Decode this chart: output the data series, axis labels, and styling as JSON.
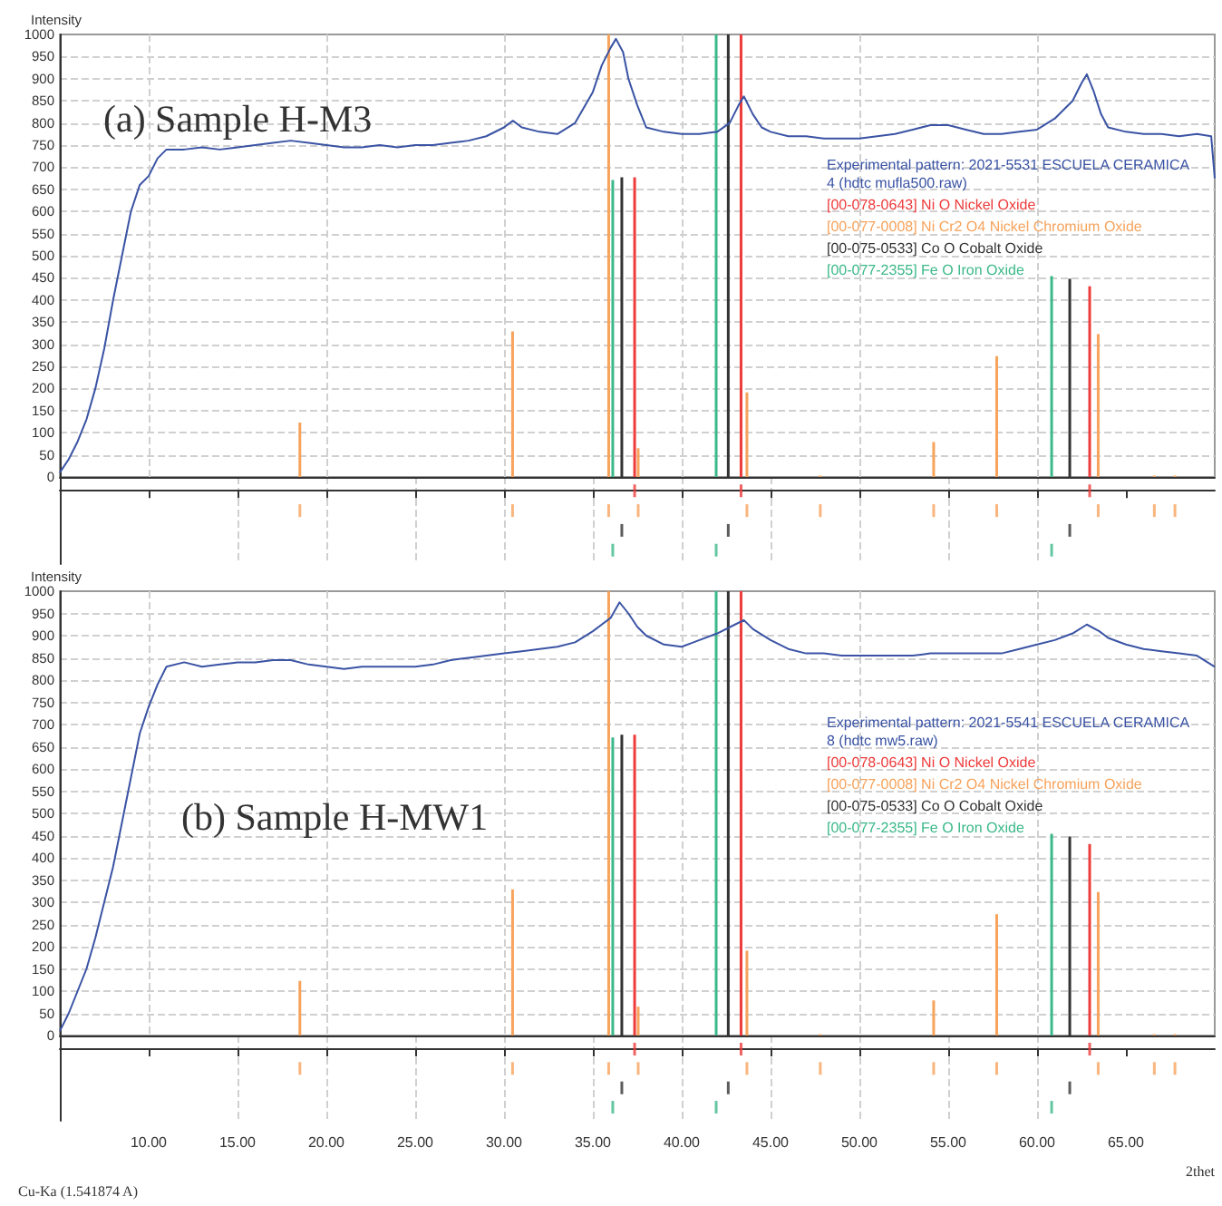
{
  "chart_data": [
    {
      "type": "line",
      "title": "(a) Sample H-M3",
      "ylabel": "Intensity",
      "xlim": [
        5,
        70
      ],
      "xticks": [
        {
          "value": 10,
          "label": null
        },
        {
          "value": 15,
          "label": null
        },
        {
          "value": 20,
          "label": null
        },
        {
          "value": 25,
          "label": null
        },
        {
          "value": 30,
          "label": null
        },
        {
          "value": 35,
          "label": null
        },
        {
          "value": 40,
          "label": null
        },
        {
          "value": 45,
          "label": null
        },
        {
          "value": 50,
          "label": null
        },
        {
          "value": 55,
          "label": null
        },
        {
          "value": 60,
          "label": null
        },
        {
          "value": 65,
          "label": null
        }
      ],
      "ylim": [
        0,
        1000
      ],
      "yticks": [
        0,
        50,
        100,
        150,
        200,
        250,
        300,
        350,
        400,
        450,
        500,
        550,
        600,
        650,
        700,
        750,
        800,
        850,
        900,
        950,
        1000
      ],
      "tick_labels": "y",
      "grid": true,
      "legend": "right",
      "marker": "none",
      "series": [
        {
          "name": "Experimental pattern: 2021-5531 ESCUELA CERAMICA 4 (hdtc mufla500.raw)",
          "color": "#3a53a4",
          "x": [
            5,
            5.5,
            6,
            6.5,
            7,
            7.5,
            8,
            8.5,
            9,
            9.5,
            10,
            10.5,
            11,
            12,
            13,
            14,
            15,
            16,
            17,
            18,
            19,
            20,
            21,
            22,
            23,
            24,
            25,
            26,
            27,
            28,
            29,
            30,
            30.5,
            31,
            32,
            33,
            34,
            35,
            35.5,
            36,
            36.3,
            36.7,
            37,
            37.5,
            38,
            39,
            40,
            41,
            42,
            42.7,
            43.2,
            43.5,
            44,
            44.5,
            45,
            46,
            47,
            48,
            49,
            50,
            51,
            52,
            53,
            54,
            55,
            56,
            57,
            58,
            59,
            60,
            61,
            62,
            62.5,
            62.8,
            63.2,
            63.6,
            64,
            65,
            66,
            67,
            68,
            69,
            69.8,
            70
          ],
          "values": [
            10,
            40,
            80,
            130,
            200,
            290,
            400,
            500,
            600,
            660,
            680,
            720,
            740,
            740,
            745,
            740,
            745,
            750,
            755,
            760,
            755,
            750,
            745,
            745,
            750,
            745,
            750,
            750,
            755,
            760,
            770,
            790,
            805,
            790,
            780,
            775,
            800,
            870,
            930,
            970,
            990,
            960,
            900,
            840,
            790,
            780,
            775,
            775,
            780,
            800,
            840,
            860,
            820,
            790,
            780,
            770,
            770,
            765,
            765,
            765,
            770,
            775,
            785,
            795,
            795,
            785,
            775,
            775,
            780,
            785,
            810,
            850,
            890,
            910,
            870,
            820,
            790,
            780,
            775,
            775,
            770,
            775,
            770,
            675
          ]
        },
        {
          "type": "bar",
          "name": "[00-078-0643] Ni O Nickel Oxide",
          "color": "#ee3b3b",
          "x": [
            37.35,
            43.34,
            62.96
          ],
          "values": [
            677,
            1000,
            431
          ]
        },
        {
          "type": "bar",
          "name": "[00-077-0008] Ni Cr2 O4 Nickel Chromium Oxide",
          "color": "#f7a35c",
          "x": [
            18.51,
            30.48,
            35.89,
            37.55,
            43.67,
            47.8,
            54.18,
            57.73,
            63.44,
            66.6,
            67.76
          ],
          "values": [
            123,
            329,
            1000,
            65,
            191,
            3,
            79,
            273,
            323,
            3,
            3
          ]
        },
        {
          "type": "bar",
          "name": "[00-075-0533] Co O Cobalt Oxide",
          "color": "#333333",
          "x": [
            36.63,
            42.62,
            61.84
          ],
          "values": [
            677,
            1000,
            448
          ]
        },
        {
          "type": "bar",
          "name": "[00-077-2355] Fe O Iron Oxide",
          "color": "#3cb98a",
          "x": [
            36.12,
            41.94,
            60.82
          ],
          "values": [
            671,
            1000,
            454
          ]
        }
      ]
    },
    {
      "type": "line",
      "title": "(b) Sample H-MW1",
      "ylabel": "Intensity",
      "xlabel": "2thet",
      "annotations": [
        "Cu-Ka (1.541874 A)"
      ],
      "xlim": [
        5,
        70
      ],
      "xticks": [
        {
          "value": 10,
          "label": "10.00"
        },
        {
          "value": 15,
          "label": "15.00"
        },
        {
          "value": 20,
          "label": "20.00"
        },
        {
          "value": 25,
          "label": "25.00"
        },
        {
          "value": 30,
          "label": "30.00"
        },
        {
          "value": 35,
          "label": "35.00"
        },
        {
          "value": 40,
          "label": "40.00"
        },
        {
          "value": 45,
          "label": "45.00"
        },
        {
          "value": 50,
          "label": "50.00"
        },
        {
          "value": 55,
          "label": "55.00"
        },
        {
          "value": 60,
          "label": "60.00"
        },
        {
          "value": 65,
          "label": "65.00"
        }
      ],
      "ylim": [
        0,
        1000
      ],
      "yticks": [
        0,
        50,
        100,
        150,
        200,
        250,
        300,
        350,
        400,
        450,
        500,
        550,
        600,
        650,
        700,
        750,
        800,
        850,
        900,
        950,
        1000
      ],
      "grid": true,
      "legend": "right",
      "marker": "none",
      "series": [
        {
          "name": "Experimental pattern: 2021-5541 ESCUELA CERAMICA 8 (hdtc mw5.raw)",
          "color": "#3a53a4",
          "x": [
            5,
            5.5,
            6,
            6.5,
            7,
            7.5,
            8,
            8.5,
            9,
            9.5,
            10,
            10.5,
            11,
            12,
            13,
            14,
            15,
            16,
            17,
            18,
            19,
            20,
            21,
            22,
            23,
            24,
            25,
            26,
            27,
            28,
            29,
            30,
            31,
            32,
            33,
            34,
            35,
            35.5,
            36,
            36.5,
            37,
            37.5,
            38,
            39,
            40,
            41,
            42,
            43,
            43.5,
            44,
            45,
            46,
            47,
            48,
            49,
            50,
            51,
            52,
            53,
            54,
            55,
            56,
            57,
            58,
            59,
            60,
            61,
            62,
            62.8,
            63.5,
            64,
            65,
            66,
            67,
            68,
            69,
            70
          ],
          "values": [
            10,
            50,
            100,
            150,
            220,
            300,
            380,
            480,
            580,
            680,
            740,
            790,
            830,
            840,
            830,
            835,
            840,
            840,
            845,
            845,
            835,
            830,
            825,
            830,
            830,
            830,
            830,
            835,
            845,
            850,
            855,
            860,
            865,
            870,
            875,
            885,
            910,
            925,
            940,
            975,
            950,
            920,
            900,
            880,
            875,
            890,
            905,
            925,
            935,
            915,
            890,
            870,
            860,
            860,
            855,
            855,
            855,
            855,
            855,
            860,
            860,
            860,
            860,
            860,
            870,
            880,
            890,
            905,
            925,
            910,
            895,
            880,
            870,
            865,
            860,
            855,
            830
          ]
        },
        {
          "type": "bar",
          "name": "[00-078-0643] Ni O Nickel Oxide",
          "color": "#ee3b3b",
          "x": [
            37.35,
            43.34,
            62.96
          ],
          "values": [
            677,
            1000,
            431
          ]
        },
        {
          "type": "bar",
          "name": "[00-077-0008] Ni Cr2 O4 Nickel Chromium Oxide",
          "color": "#f7a35c",
          "x": [
            18.51,
            30.48,
            35.89,
            37.55,
            43.67,
            47.8,
            54.18,
            57.73,
            63.44,
            66.6,
            67.76
          ],
          "values": [
            123,
            329,
            1000,
            65,
            191,
            3,
            79,
            273,
            323,
            3,
            3
          ]
        },
        {
          "type": "bar",
          "name": "[00-075-0533] Co O Cobalt Oxide",
          "color": "#333333",
          "x": [
            36.63,
            42.62,
            61.84
          ],
          "values": [
            677,
            1000,
            448
          ]
        },
        {
          "type": "bar",
          "name": "[00-077-2355] Fe O Iron Oxide",
          "color": "#3cb98a",
          "x": [
            36.12,
            41.94,
            60.82
          ],
          "values": [
            671,
            1000,
            454
          ]
        }
      ]
    }
  ]
}
